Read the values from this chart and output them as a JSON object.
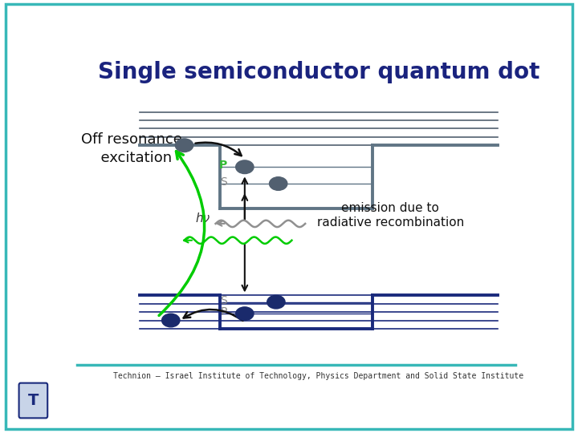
{
  "title": "Single semiconductor quantum dot",
  "title_color": "#1a237e",
  "title_fontsize": 20,
  "bg_color": "#ffffff",
  "border_color": "#38b8b8",
  "footer_text": "Technion – Israel Institute of Technology, Physics Department and Solid State Institute",
  "left_label": "Off resonance\n  excitation",
  "emission_label": "emission due to\nradiative recombination",
  "P_label_top": "P",
  "S_label_top": "S",
  "S_label_bot": "S",
  "P_label_bot": "P",
  "hv_label": "hν",
  "dot_color_top": "#526070",
  "dot_color_bot": "#1a2a6c",
  "well_color_top": "#607585",
  "well_color_bot": "#1a2a7c",
  "line_color_top": "#526070",
  "line_color_bot": "#1a2a7c",
  "arrow_color_black": "#111111",
  "arrow_color_green": "#00cc00",
  "wave_color_gray": "#909090",
  "wave_color_green": "#00cc00",
  "footer_line_color": "#38b8b8"
}
